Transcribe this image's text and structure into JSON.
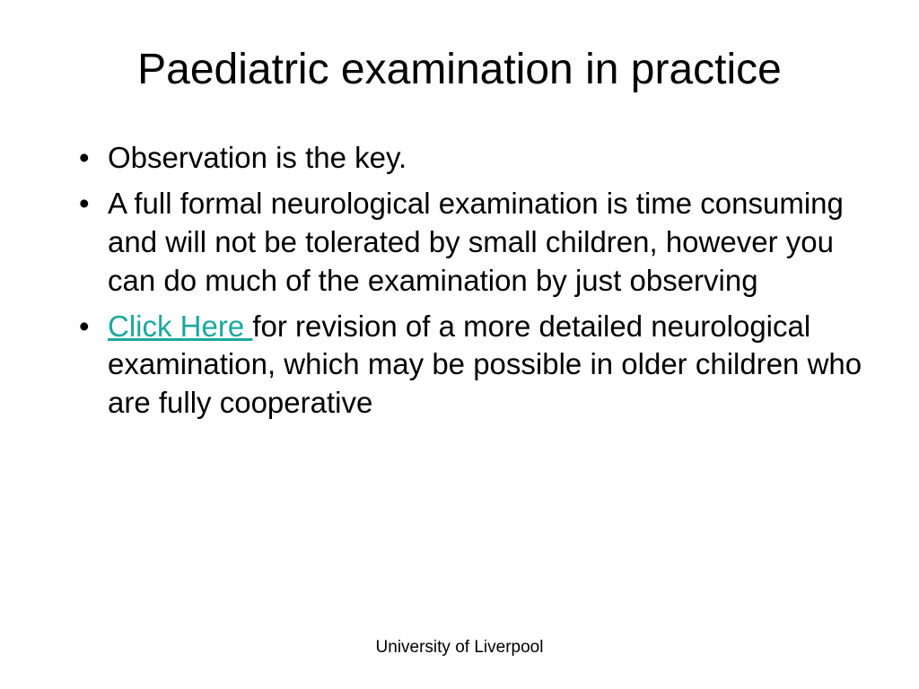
{
  "slide": {
    "title": "Paediatric examination in practice",
    "bullets": [
      {
        "text": "Observation is the key.",
        "hasLink": false
      },
      {
        "text": "A full formal neurological examination is time consuming and will not be tolerated by small children, however you can do much of the examination by just observing",
        "hasLink": false
      },
      {
        "linkText": "Click Here ",
        "text": "for revision of a more detailed neurological examination, which may be possible in older children who are fully cooperative",
        "hasLink": true
      }
    ],
    "footer": "University of Liverpool"
  },
  "styles": {
    "background_color": "#ffffff",
    "text_color": "#000000",
    "link_color": "#1ba8a0",
    "title_fontsize": 48,
    "body_fontsize": 33,
    "footer_fontsize": 19,
    "font_family": "Arial"
  }
}
